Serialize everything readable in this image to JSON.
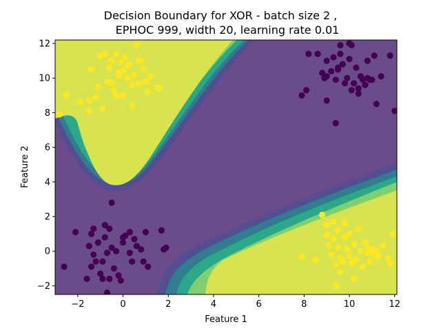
{
  "chart_data": {
    "type": "scatter",
    "title_line1": "Decision Boundary for XOR - batch size 2 ,",
    "title_line2": "EPHOC 999, width 20, learning rate 0.01",
    "xlabel": "Feature 1",
    "ylabel": "Feature 2",
    "xlim": [
      -3.0,
      12.1
    ],
    "ylim": [
      -2.5,
      12.2
    ],
    "xticks": [
      -2,
      0,
      2,
      4,
      6,
      8,
      10,
      12
    ],
    "yticks": [
      -2,
      0,
      2,
      4,
      6,
      8,
      10,
      12
    ],
    "grid": false,
    "legend": "none",
    "colors": {
      "class_0": "#440154",
      "class_1": "#fde725",
      "region_0": "#6b4c8a",
      "region_1": "#d7e44f",
      "contour_levels": [
        "#414487",
        "#355f8d",
        "#2a788e",
        "#21918c",
        "#22a884",
        "#44bf70",
        "#7ad151",
        "#bddf26"
      ]
    },
    "series": [
      {
        "class": 1,
        "points": [
          [
            -2.8,
            7.9
          ],
          [
            -2.5,
            9.0
          ],
          [
            -1.9,
            8.6
          ],
          [
            -1.5,
            8.1
          ],
          [
            -1.5,
            8.7
          ],
          [
            -1.4,
            10.5
          ],
          [
            -1.2,
            8.9
          ],
          [
            -1.1,
            9.5
          ],
          [
            -1.0,
            11.3
          ],
          [
            -0.9,
            8.2
          ],
          [
            -0.7,
            9.8
          ],
          [
            -0.6,
            10.6
          ],
          [
            -0.5,
            11.0
          ],
          [
            -0.5,
            9.7
          ],
          [
            -0.4,
            9.3
          ],
          [
            -0.3,
            11.4
          ],
          [
            -0.3,
            9.0
          ],
          [
            -0.2,
            10.3
          ],
          [
            -0.1,
            10.9
          ],
          [
            0.0,
            10.4
          ],
          [
            0.0,
            9.0
          ],
          [
            0.1,
            11.2
          ],
          [
            0.2,
            10.0
          ],
          [
            0.3,
            10.8
          ],
          [
            0.4,
            9.6
          ],
          [
            0.4,
            8.4
          ],
          [
            0.5,
            10.2
          ],
          [
            0.6,
            11.9
          ],
          [
            0.7,
            11.0
          ],
          [
            0.7,
            9.7
          ],
          [
            0.8,
            11.0
          ],
          [
            0.9,
            10.5
          ],
          [
            1.0,
            9.8
          ],
          [
            1.1,
            9.2
          ],
          [
            1.2,
            10.1
          ],
          [
            1.5,
            9.5
          ],
          [
            1.6,
            9.4
          ],
          [
            0.2,
            10.7
          ],
          [
            -0.2,
            10.1
          ],
          [
            -0.8,
            11.4
          ]
        ]
      },
      {
        "class": 1,
        "points": [
          [
            7.9,
            -0.3
          ],
          [
            8.5,
            -0.5
          ],
          [
            8.8,
            2.1
          ],
          [
            9.0,
            1.5
          ],
          [
            9.1,
            0.3
          ],
          [
            9.2,
            -0.2
          ],
          [
            9.3,
            0.7
          ],
          [
            9.3,
            1.7
          ],
          [
            9.4,
            -0.8
          ],
          [
            9.5,
            0.2
          ],
          [
            9.6,
            -0.4
          ],
          [
            9.7,
            -0.6
          ],
          [
            9.8,
            0.8
          ],
          [
            9.8,
            1.6
          ],
          [
            9.9,
            0.1
          ],
          [
            10.0,
            -0.3
          ],
          [
            10.0,
            1.0
          ],
          [
            10.1,
            -0.7
          ],
          [
            10.2,
            0.4
          ],
          [
            10.3,
            -0.5
          ],
          [
            10.4,
            1.3
          ],
          [
            10.5,
            0.0
          ],
          [
            10.6,
            -0.9
          ],
          [
            10.7,
            0.5
          ],
          [
            10.8,
            0.2
          ],
          [
            10.9,
            -0.6
          ],
          [
            11.0,
            0.1
          ],
          [
            11.1,
            -0.2
          ],
          [
            11.3,
            -0.3
          ],
          [
            11.5,
            0.3
          ],
          [
            11.7,
            -0.4
          ],
          [
            11.8,
            -0.7
          ],
          [
            11.9,
            1.0
          ],
          [
            9.4,
            -2.0
          ],
          [
            9.6,
            -1.2
          ],
          [
            10.2,
            -1.6
          ],
          [
            9.0,
            0.9
          ],
          [
            9.5,
            1.2
          ],
          [
            10.8,
            -0.1
          ],
          [
            11.2,
            0.0
          ]
        ]
      },
      {
        "class": 0,
        "points": [
          [
            -2.6,
            -0.9
          ],
          [
            -2.1,
            1.1
          ],
          [
            -1.6,
            -1.6
          ],
          [
            -1.5,
            0.3
          ],
          [
            -1.4,
            1.0
          ],
          [
            -1.4,
            -0.9
          ],
          [
            -1.3,
            -0.2
          ],
          [
            -1.3,
            1.3
          ],
          [
            -1.2,
            -0.6
          ],
          [
            -1.1,
            0.5
          ],
          [
            -1.0,
            -1.3
          ],
          [
            -0.9,
            -0.6
          ],
          [
            -0.9,
            -1.6
          ],
          [
            -0.8,
            0.8
          ],
          [
            -0.8,
            1.5
          ],
          [
            -0.7,
            -0.1
          ],
          [
            -0.7,
            -2.4
          ],
          [
            -0.6,
            -1.6
          ],
          [
            -0.6,
            1.3
          ],
          [
            -0.5,
            2.8
          ],
          [
            -0.5,
            0.2
          ],
          [
            -0.4,
            -1.0
          ],
          [
            -0.3,
            0.0
          ],
          [
            -0.2,
            -1.4
          ],
          [
            -0.1,
            -1.7
          ],
          [
            0.0,
            0.5
          ],
          [
            0.0,
            0.8
          ],
          [
            0.1,
            0.9
          ],
          [
            0.3,
            1.1
          ],
          [
            0.3,
            -0.1
          ],
          [
            0.4,
            -0.6
          ],
          [
            0.5,
            0.7
          ],
          [
            0.6,
            0.3
          ],
          [
            0.8,
            0.1
          ],
          [
            0.9,
            -0.6
          ],
          [
            1.0,
            1.1
          ],
          [
            1.1,
            -0.9
          ],
          [
            1.7,
            1.2
          ],
          [
            1.8,
            0.1
          ],
          [
            1.9,
            0.2
          ]
        ]
      },
      {
        "class": 0,
        "points": [
          [
            7.9,
            9.0
          ],
          [
            8.1,
            9.3
          ],
          [
            8.2,
            11.4
          ],
          [
            8.6,
            11.4
          ],
          [
            8.8,
            10.3
          ],
          [
            8.9,
            10.0
          ],
          [
            9.0,
            8.7
          ],
          [
            9.0,
            10.1
          ],
          [
            9.0,
            11.0
          ],
          [
            9.3,
            11.2
          ],
          [
            9.4,
            9.9
          ],
          [
            9.4,
            7.4
          ],
          [
            9.5,
            10.6
          ],
          [
            9.6,
            11.4
          ],
          [
            9.7,
            10.8
          ],
          [
            9.8,
            9.7
          ],
          [
            9.9,
            10.0
          ],
          [
            10.0,
            11.1
          ],
          [
            10.0,
            12.0
          ],
          [
            10.1,
            9.3
          ],
          [
            10.2,
            9.7
          ],
          [
            10.3,
            10.6
          ],
          [
            10.4,
            9.1
          ],
          [
            10.5,
            10.1
          ],
          [
            10.6,
            9.9
          ],
          [
            10.7,
            9.6
          ],
          [
            10.8,
            11.0
          ],
          [
            10.9,
            9.9
          ],
          [
            11.0,
            9.9
          ],
          [
            11.1,
            11.3
          ],
          [
            11.2,
            8.5
          ],
          [
            11.4,
            10.1
          ],
          [
            11.8,
            11.3
          ],
          [
            12.0,
            8.1
          ],
          [
            9.6,
            11.9
          ],
          [
            10.1,
            11.9
          ],
          [
            10.4,
            9.4
          ],
          [
            9.2,
            10.4
          ],
          [
            9.5,
            10.5
          ],
          [
            10.8,
            10.0
          ]
        ]
      }
    ]
  }
}
